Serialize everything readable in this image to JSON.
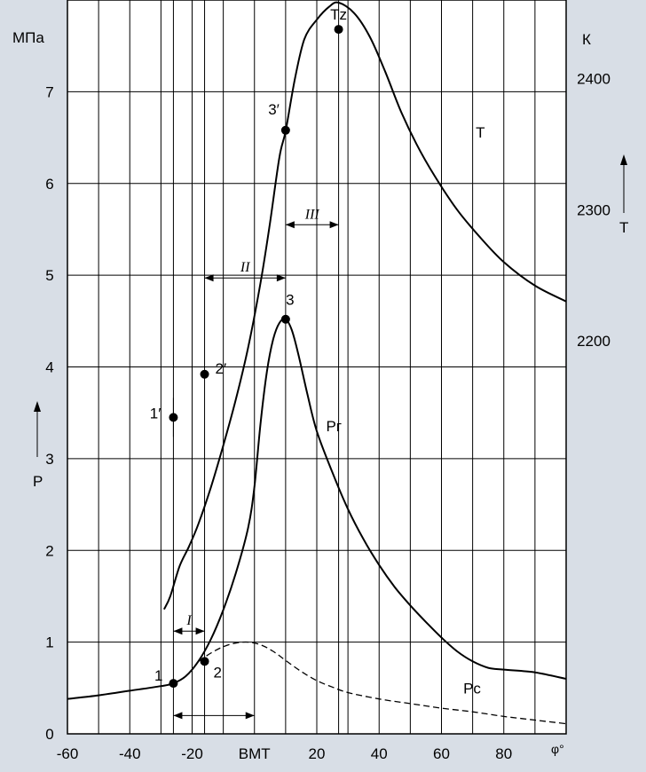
{
  "colors": {
    "background": "#d8dee6",
    "plot": "#ffffff",
    "ink": "#000000"
  },
  "chart_data": {
    "type": "line",
    "title": "",
    "xlabel": "φ°",
    "ylabel_left": "P",
    "ylabel_left_unit": "МПа",
    "ylabel_right": "T",
    "ylabel_right_unit": "К",
    "xlim": [
      -60,
      100
    ],
    "ylim": [
      0,
      8
    ],
    "y2lim": [
      1900,
      2460
    ],
    "grid": true,
    "x_ticks": [
      {
        "x": -60,
        "label": "-60"
      },
      {
        "x": -40,
        "label": "-40"
      },
      {
        "x": -20,
        "label": "-20"
      },
      {
        "x": 0,
        "label": "ВМТ"
      },
      {
        "x": 20,
        "label": "20"
      },
      {
        "x": 40,
        "label": "40"
      },
      {
        "x": 60,
        "label": "60"
      },
      {
        "x": 80,
        "label": "80"
      }
    ],
    "y_ticks": [
      0,
      1,
      2,
      3,
      4,
      5,
      6,
      7
    ],
    "y2_ticks": [
      2200,
      2300,
      2400
    ],
    "series": [
      {
        "name": "Pг",
        "style": "solid",
        "values": [
          [
            -60,
            0.38
          ],
          [
            -50,
            0.42
          ],
          [
            -40,
            0.47
          ],
          [
            -30,
            0.52
          ],
          [
            -26,
            0.55
          ],
          [
            -22,
            0.63
          ],
          [
            -18,
            0.79
          ],
          [
            -14,
            1.03
          ],
          [
            -10,
            1.35
          ],
          [
            -6,
            1.75
          ],
          [
            -2,
            2.25
          ],
          [
            0,
            2.7
          ],
          [
            2,
            3.4
          ],
          [
            4,
            3.95
          ],
          [
            6,
            4.3
          ],
          [
            8,
            4.48
          ],
          [
            10,
            4.52
          ],
          [
            12,
            4.4
          ],
          [
            14,
            4.15
          ],
          [
            17,
            3.7
          ],
          [
            20,
            3.3
          ],
          [
            25,
            2.85
          ],
          [
            30,
            2.45
          ],
          [
            35,
            2.12
          ],
          [
            40,
            1.84
          ],
          [
            45,
            1.6
          ],
          [
            50,
            1.4
          ],
          [
            55,
            1.22
          ],
          [
            60,
            1.05
          ],
          [
            65,
            0.9
          ],
          [
            70,
            0.79
          ],
          [
            75,
            0.72
          ],
          [
            80,
            0.7
          ],
          [
            90,
            0.67
          ],
          [
            100,
            0.6
          ]
        ]
      },
      {
        "name": "Pс",
        "style": "dashed",
        "values": [
          [
            -18,
            0.79
          ],
          [
            -14,
            0.88
          ],
          [
            -10,
            0.95
          ],
          [
            -6,
            0.99
          ],
          [
            -2,
            1.0
          ],
          [
            2,
            0.97
          ],
          [
            6,
            0.9
          ],
          [
            10,
            0.8
          ],
          [
            15,
            0.68
          ],
          [
            20,
            0.58
          ],
          [
            25,
            0.51
          ],
          [
            30,
            0.45
          ],
          [
            40,
            0.38
          ],
          [
            50,
            0.33
          ],
          [
            60,
            0.28
          ],
          [
            70,
            0.24
          ],
          [
            80,
            0.19
          ],
          [
            90,
            0.15
          ],
          [
            100,
            0.11
          ]
        ]
      },
      {
        "name": "T",
        "style": "solid",
        "axis": "right",
        "values": [
          [
            -29,
            1995
          ],
          [
            -27,
            2005
          ],
          [
            -24,
            2028
          ],
          [
            -21,
            2043
          ],
          [
            -18,
            2060
          ],
          [
            -14,
            2088
          ],
          [
            -10,
            2120
          ],
          [
            -6,
            2155
          ],
          [
            -2,
            2195
          ],
          [
            2,
            2245
          ],
          [
            5,
            2290
          ],
          [
            8,
            2340
          ],
          [
            10,
            2360
          ],
          [
            13,
            2400
          ],
          [
            16,
            2430
          ],
          [
            20,
            2445
          ],
          [
            24,
            2455
          ],
          [
            27,
            2458
          ],
          [
            32,
            2450
          ],
          [
            37,
            2432
          ],
          [
            42,
            2405
          ],
          [
            47,
            2375
          ],
          [
            52,
            2350
          ],
          [
            58,
            2325
          ],
          [
            65,
            2300
          ],
          [
            72,
            2280
          ],
          [
            80,
            2260
          ],
          [
            90,
            2242
          ],
          [
            100,
            2230
          ]
        ]
      }
    ],
    "points": [
      {
        "label": "1",
        "x": -26,
        "y": 0.55,
        "axis": "left",
        "pos": "left"
      },
      {
        "label": "2",
        "x": -16,
        "y": 0.79,
        "axis": "left",
        "pos": "right"
      },
      {
        "label": "3",
        "x": 10,
        "y": 4.52,
        "axis": "left",
        "pos": "above-right"
      },
      {
        "label": "1′",
        "x": -26,
        "y": 3.45,
        "axis": "left",
        "pos": "left"
      },
      {
        "label": "2′",
        "x": -16,
        "y": 3.92,
        "axis": "left",
        "pos": "right"
      },
      {
        "label": "3′",
        "x": 10,
        "y": 6.58,
        "axis": "left",
        "pos": "left"
      },
      {
        "label": "Tz",
        "x": 27,
        "y": 7.68,
        "axis": "left",
        "pos": "above"
      }
    ],
    "series_labels": [
      {
        "text": "Pг",
        "x": 23,
        "y": 3.3
      },
      {
        "text": "Pс",
        "x": 67,
        "y": 0.44
      },
      {
        "text": "T",
        "x": 71,
        "y": 6.5
      }
    ],
    "intervals": [
      {
        "label": "I",
        "x1": -26,
        "x2": -16,
        "y": 1.12
      },
      {
        "label": "II",
        "x1": -16,
        "x2": 10,
        "y": 4.97
      },
      {
        "label": "III",
        "x1": 10,
        "x2": 27,
        "y": 5.55
      }
    ],
    "extra_arrow": {
      "x1": -26,
      "x2": 0,
      "y": 0.2
    }
  }
}
